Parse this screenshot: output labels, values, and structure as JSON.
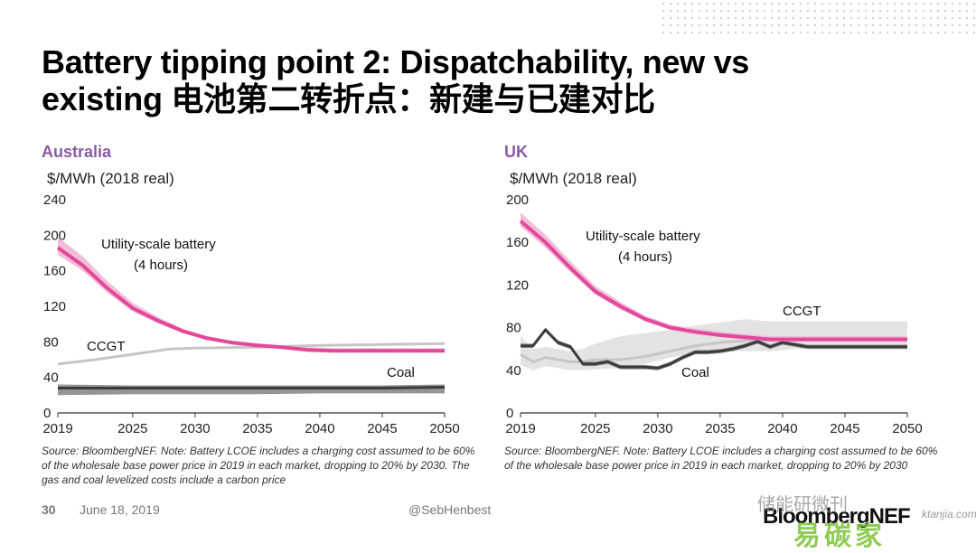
{
  "slide": {
    "title_line1": "Battery tipping point 2: Dispatchability, new vs",
    "title_line2": "existing 电池第二转折点：新建与已建对比",
    "page_number": "30",
    "date": "June 18, 2019",
    "handle": "@SebHenbest",
    "logo_text": "BloombergNEF",
    "watermark_top": "储能研微刊",
    "watermark_main": "易碳家",
    "watermark_small": "ktanjia.com"
  },
  "colors": {
    "battery": "#e2499a",
    "battery_band": "#f2b6d5",
    "ccgt": "#c6c6c6",
    "ccgt_band": "#e0e0e0",
    "coal": "#3c3c3c",
    "coal_band": "#8a8a8a",
    "region_title": "#8a5aa6",
    "axis": "#333333"
  },
  "chart_data": [
    {
      "type": "line",
      "region": "Australia",
      "ylabel": "$/MWh (2018 real)",
      "ylim": [
        0,
        240
      ],
      "yticks": [
        0,
        40,
        80,
        120,
        160,
        200,
        240
      ],
      "xlim": [
        2019,
        2050
      ],
      "xticks": [
        2019,
        2025,
        2030,
        2035,
        2040,
        2045,
        2050
      ],
      "source": "Source: BloombergNEF. Note: Battery LCOE includes a charging cost assumed to be 60% of the wholesale base power price in 2019 in each market, dropping to 20% by 2030. The gas and coal levelized costs include a carbon price",
      "annotations": [
        "Utility-scale battery",
        "(4 hours)",
        "CCGT",
        "Coal"
      ],
      "series": [
        {
          "name": "Utility-scale battery (4 hours)",
          "x": [
            2019,
            2021,
            2023,
            2025,
            2027,
            2029,
            2031,
            2033,
            2035,
            2037,
            2039,
            2041,
            2045,
            2050
          ],
          "values": [
            186,
            166,
            140,
            118,
            104,
            92,
            84,
            79,
            76,
            74,
            71,
            70,
            70,
            70
          ],
          "low": [
            178,
            160,
            135,
            114,
            101,
            90,
            82,
            77,
            75,
            73,
            70,
            69,
            69,
            69
          ],
          "high": [
            198,
            176,
            148,
            124,
            108,
            95,
            86,
            81,
            78,
            76,
            74,
            73,
            73,
            73
          ]
        },
        {
          "name": "CCGT",
          "x": [
            2019,
            2022,
            2025,
            2028,
            2030,
            2035,
            2040,
            2045,
            2050
          ],
          "values": [
            55,
            60,
            66,
            72,
            73,
            74,
            76,
            77,
            78
          ],
          "low": [
            54,
            59,
            65,
            71,
            72,
            73,
            75,
            76,
            77
          ],
          "high": [
            56,
            61,
            67,
            73,
            74,
            75,
            77,
            78,
            79
          ]
        },
        {
          "name": "Coal",
          "x": [
            2019,
            2025,
            2030,
            2035,
            2040,
            2045,
            2050
          ],
          "values": [
            28,
            28,
            28,
            28,
            28,
            28,
            29
          ],
          "low": [
            20,
            21,
            21,
            21,
            22,
            22,
            22
          ],
          "high": [
            32,
            31,
            31,
            31,
            31,
            31,
            32
          ]
        }
      ]
    },
    {
      "type": "line",
      "region": "UK",
      "ylabel": "$/MWh (2018 real)",
      "ylim": [
        0,
        200
      ],
      "yticks": [
        0,
        40,
        80,
        120,
        160,
        200
      ],
      "xlim": [
        2019,
        2050
      ],
      "xticks": [
        2019,
        2025,
        2030,
        2035,
        2040,
        2045,
        2050
      ],
      "source": "Source: BloombergNEF. Note: Battery LCOE includes a charging cost assumed to be 60% of the wholesale base power price in 2019 in each market, dropping to 20% by 2030",
      "annotations": [
        "Utility-scale battery",
        "(4 hours)",
        "CCGT",
        "Coal"
      ],
      "series": [
        {
          "name": "Utility-scale battery (4 hours)",
          "x": [
            2019,
            2021,
            2023,
            2025,
            2027,
            2029,
            2031,
            2033,
            2035,
            2037,
            2039,
            2041,
            2045,
            2050
          ],
          "values": [
            180,
            160,
            136,
            114,
            100,
            88,
            80,
            76,
            73,
            71,
            69,
            69,
            69,
            69
          ],
          "low": [
            175,
            155,
            132,
            111,
            97,
            86,
            78,
            74,
            71,
            69,
            67,
            67,
            67,
            67
          ],
          "high": [
            188,
            167,
            142,
            119,
            104,
            91,
            83,
            79,
            76,
            74,
            72,
            72,
            72,
            72
          ]
        },
        {
          "name": "CCGT",
          "x": [
            2019,
            2020,
            2021,
            2022,
            2023,
            2024,
            2025,
            2027,
            2029,
            2031,
            2033,
            2035,
            2037,
            2039,
            2041,
            2045,
            2050
          ],
          "values": [
            55,
            48,
            52,
            50,
            48,
            48,
            50,
            50,
            53,
            58,
            63,
            66,
            68,
            68,
            70,
            70,
            70
          ],
          "low": [
            45,
            40,
            44,
            42,
            40,
            40,
            41,
            42,
            46,
            52,
            56,
            58,
            58,
            58,
            60,
            60,
            60
          ],
          "high": [
            72,
            60,
            62,
            60,
            58,
            60,
            65,
            72,
            75,
            78,
            82,
            85,
            88,
            86,
            86,
            86,
            86
          ]
        },
        {
          "name": "Coal",
          "x": [
            2019,
            2020,
            2021,
            2022,
            2023,
            2024,
            2025,
            2026,
            2027,
            2028,
            2029,
            2030,
            2031,
            2032,
            2033,
            2034,
            2035,
            2036,
            2037,
            2038,
            2039,
            2040,
            2042,
            2045,
            2050
          ],
          "values": [
            63,
            63,
            78,
            66,
            62,
            46,
            46,
            48,
            43,
            43,
            43,
            42,
            46,
            52,
            57,
            57,
            58,
            60,
            63,
            67,
            62,
            66,
            62,
            62,
            62
          ],
          "low": [
            61,
            61,
            76,
            64,
            60,
            44,
            44,
            46,
            41,
            41,
            41,
            40,
            44,
            50,
            55,
            55,
            56,
            58,
            61,
            65,
            60,
            64,
            60,
            60,
            60
          ],
          "high": [
            65,
            65,
            80,
            68,
            64,
            48,
            48,
            50,
            45,
            45,
            45,
            44,
            48,
            54,
            59,
            59,
            60,
            62,
            65,
            69,
            64,
            68,
            64,
            64,
            64
          ]
        }
      ]
    }
  ]
}
